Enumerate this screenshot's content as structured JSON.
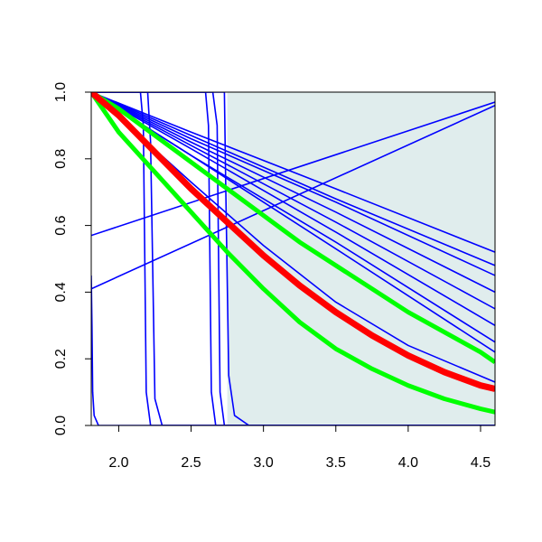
{
  "chart_data": {
    "type": "line",
    "xlim": [
      1.81,
      4.6
    ],
    "ylim": [
      0,
      1
    ],
    "xticks": [
      {
        "value": 2,
        "label": "2.0"
      },
      2.5,
      {
        "value": 3,
        "label": "3.0"
      },
      3.5,
      {
        "value": 4,
        "label": "4.0"
      },
      4.5
    ],
    "yticks": [
      {
        "value": 0,
        "label": "0.0"
      },
      0.2,
      0.4,
      0.6,
      0.8,
      {
        "value": 1,
        "label": "1.0"
      }
    ],
    "shaded_xlim": [
      2.75,
      4.6
    ],
    "shade_color": "#e0eded",
    "series": [
      {
        "color": "#0000ff",
        "x": [
          1.81,
          4.6
        ],
        "values": [
          0.57,
          0.97
        ]
      },
      {
        "color": "#0000ff",
        "x": [
          1.81,
          4.6
        ],
        "values": [
          0.41,
          0.96
        ]
      },
      {
        "color": "#0000ff",
        "x": [
          1.81,
          1.815,
          1.82,
          1.83,
          1.86,
          4.6
        ],
        "values": [
          0.45,
          0.3,
          0.1,
          0.03,
          0,
          0
        ]
      },
      {
        "color": "#0000ff",
        "x": [
          1.81,
          2.15,
          2.17,
          2.19,
          2.22,
          4.6
        ],
        "values": [
          1,
          1,
          0.9,
          0.1,
          0,
          0
        ]
      },
      {
        "color": "#0000ff",
        "x": [
          1.81,
          2.2,
          2.22,
          2.25,
          2.3,
          4.6
        ],
        "values": [
          1,
          1,
          0.85,
          0.08,
          0,
          0
        ]
      },
      {
        "color": "#0000ff",
        "x": [
          1.81,
          2.6,
          2.62,
          2.64,
          2.67,
          4.6
        ],
        "values": [
          1,
          1,
          0.9,
          0.1,
          0,
          0
        ]
      },
      {
        "color": "#0000ff",
        "x": [
          1.81,
          2.65,
          2.68,
          2.7,
          2.73,
          4.6
        ],
        "values": [
          1,
          1,
          0.9,
          0.1,
          0,
          0
        ]
      },
      {
        "color": "#0000ff",
        "x": [
          1.81,
          2.73,
          2.74,
          2.76,
          2.8,
          2.9,
          4.6
        ],
        "values": [
          1,
          1,
          0.7,
          0.15,
          0.03,
          0,
          0
        ]
      },
      {
        "color": "#0000ff",
        "x": [
          1.81,
          2.5,
          3.5,
          4.6
        ],
        "values": [
          1,
          0.88,
          0.71,
          0.52
        ]
      },
      {
        "color": "#0000ff",
        "x": [
          1.81,
          2.5,
          3.5,
          4.6
        ],
        "values": [
          1,
          0.87,
          0.68,
          0.48
        ]
      },
      {
        "color": "#0000ff",
        "x": [
          1.81,
          2.5,
          3.5,
          4.6
        ],
        "values": [
          1,
          0.86,
          0.67,
          0.45
        ]
      },
      {
        "color": "#0000ff",
        "x": [
          1.81,
          2.5,
          3.5,
          4.6
        ],
        "values": [
          1,
          0.85,
          0.64,
          0.4
        ]
      },
      {
        "color": "#0000ff",
        "x": [
          1.81,
          2.5,
          3.5,
          4.6
        ],
        "values": [
          1,
          0.84,
          0.61,
          0.35
        ]
      },
      {
        "color": "#0000ff",
        "x": [
          1.81,
          2.5,
          3.5,
          4.6
        ],
        "values": [
          1,
          0.83,
          0.58,
          0.3
        ]
      },
      {
        "color": "#0000ff",
        "x": [
          1.81,
          2.5,
          3.5,
          4.6
        ],
        "values": [
          1,
          0.81,
          0.55,
          0.25
        ]
      },
      {
        "color": "#0000ff",
        "x": [
          1.81,
          2.5,
          3.5,
          4.6
        ],
        "values": [
          1,
          0.81,
          0.53,
          0.22
        ]
      },
      {
        "color": "#0000ff",
        "x": [
          1.81,
          2.5,
          3.0,
          3.5,
          4.0,
          4.6
        ],
        "values": [
          1,
          0.73,
          0.54,
          0.37,
          0.24,
          0.13
        ]
      },
      {
        "color": "#00ff00",
        "x": [
          1.81,
          2.0,
          2.25,
          2.5,
          2.75,
          3.0,
          3.25,
          3.5,
          3.75,
          4.0,
          4.25,
          4.5,
          4.6
        ],
        "values": [
          1,
          0.95,
          0.87,
          0.79,
          0.71,
          0.63,
          0.55,
          0.48,
          0.41,
          0.34,
          0.28,
          0.22,
          0.19
        ]
      },
      {
        "color": "#00ff00",
        "x": [
          1.81,
          2.0,
          2.25,
          2.5,
          2.75,
          3.0,
          3.25,
          3.5,
          3.75,
          4.0,
          4.25,
          4.5,
          4.6
        ],
        "values": [
          1,
          0.88,
          0.76,
          0.64,
          0.52,
          0.41,
          0.31,
          0.23,
          0.17,
          0.12,
          0.08,
          0.05,
          0.04
        ]
      },
      {
        "color": "#ff0000",
        "x": [
          1.81,
          2.0,
          2.25,
          2.5,
          2.75,
          3.0,
          3.25,
          3.5,
          3.75,
          4.0,
          4.25,
          4.5,
          4.6
        ],
        "values": [
          1,
          0.93,
          0.82,
          0.71,
          0.61,
          0.51,
          0.42,
          0.34,
          0.27,
          0.21,
          0.16,
          0.12,
          0.11
        ]
      }
    ]
  }
}
